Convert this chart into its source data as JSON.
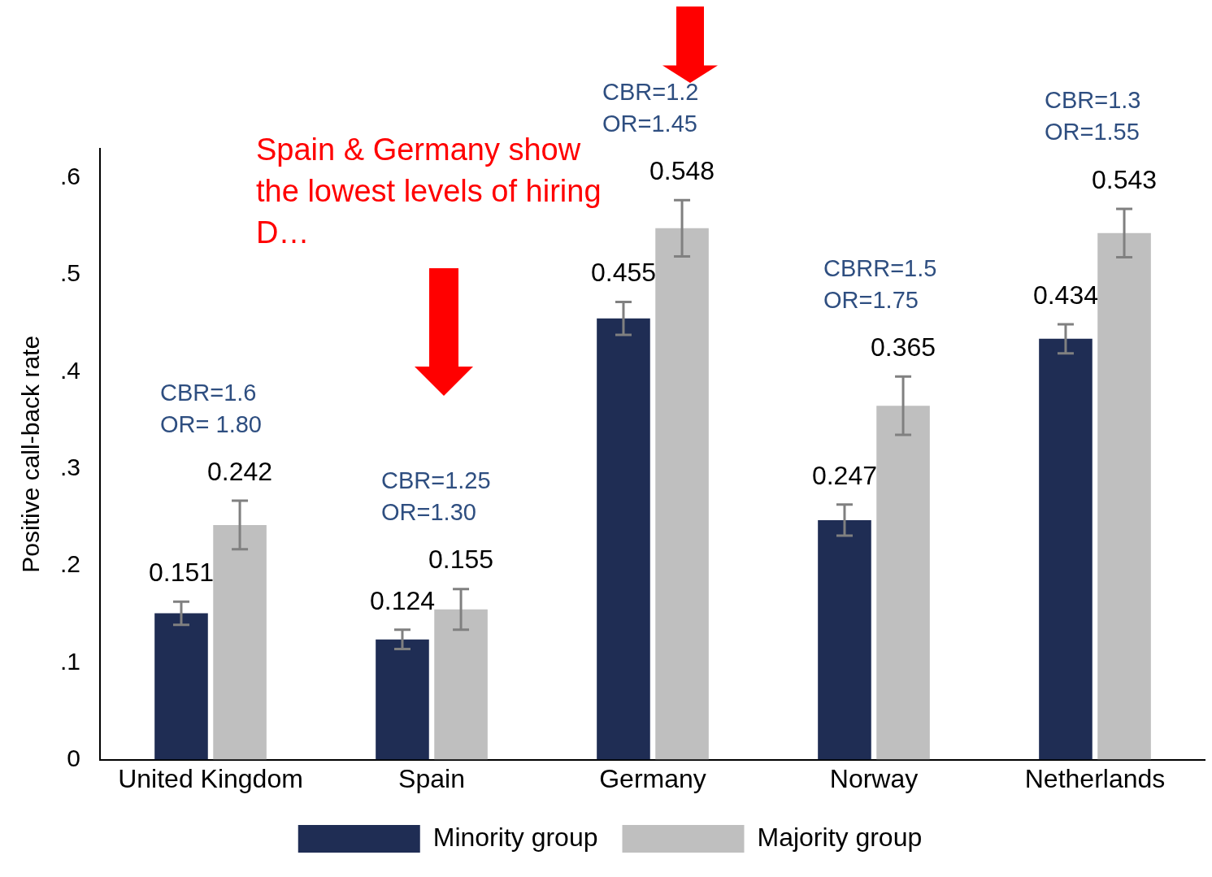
{
  "chart_data": {
    "type": "bar",
    "ylabel": "Positive call-back rate",
    "categories": [
      "United Kingdom",
      "Spain",
      "Germany",
      "Norway",
      "Netherlands"
    ],
    "series": [
      {
        "name": "Minority group",
        "color": "#1f2d54",
        "values": [
          0.151,
          0.124,
          0.455,
          0.247,
          0.434
        ],
        "errors": [
          0.012,
          0.01,
          0.017,
          0.016,
          0.015
        ]
      },
      {
        "name": "Majority group",
        "color": "#bfbfbf",
        "values": [
          0.242,
          0.155,
          0.548,
          0.365,
          0.543
        ],
        "errors": [
          0.025,
          0.021,
          0.029,
          0.03,
          0.025
        ]
      }
    ],
    "data_labels": true,
    "ylim": [
      0,
      0.63
    ],
    "yticks": [
      0,
      {
        "value": 0.1,
        "label": ".1"
      },
      {
        "value": 0.2,
        "label": ".2"
      },
      {
        "value": 0.3,
        "label": ".3"
      },
      {
        "value": 0.4,
        "label": ".4"
      },
      {
        "value": 0.5,
        "label": ".5"
      },
      {
        "value": 0.6,
        "label": ".6"
      }
    ],
    "grid": false,
    "legend": "bottom",
    "annotations": [
      "CBR=1.6\nOR= 1.80",
      "CBR=1.25\nOR=1.30",
      "CBR=1.2\nOR=1.45",
      "CBRR=1.5\nOR=1.75",
      "CBR=1.3\nOR=1.55",
      "Spain & Germany show the lowest levels of hiring D…"
    ]
  }
}
